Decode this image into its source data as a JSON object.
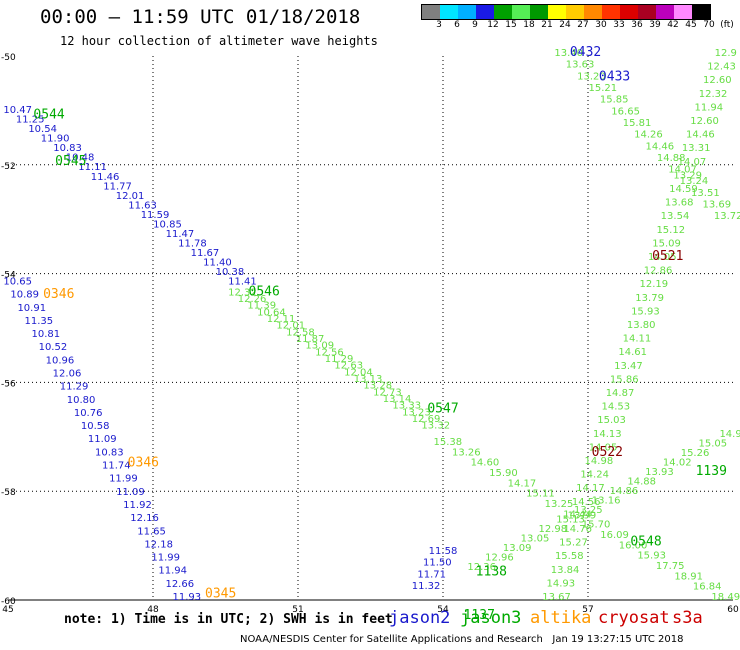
{
  "header": {
    "title": "00:00 – 11:59 UTC 01/18/2018",
    "subtitle": "12 hour collection of altimeter wave heights"
  },
  "scale": {
    "labels": [
      "3",
      "6",
      "9",
      "12",
      "15",
      "18",
      "21",
      "24",
      "27",
      "30",
      "33",
      "36",
      "39",
      "42",
      "45",
      "70",
      "(ft)"
    ],
    "colors": [
      "#808080",
      "#00e5ff",
      "#00b0ff",
      "#1a1ae6",
      "#00a000",
      "#55ee55",
      "#009900",
      "#ffff00",
      "#ffcc00",
      "#ff8800",
      "#ff3300",
      "#dd0000",
      "#aa0022",
      "#bb00bb",
      "#ff88ff",
      "#000000"
    ]
  },
  "map": {
    "lon_ticks": [
      "45",
      "48",
      "51",
      "54",
      "57",
      "60"
    ],
    "lat_ticks": [
      "-50",
      "-52",
      "-54",
      "-56",
      "-58",
      "-60"
    ],
    "lon_range": [
      45,
      60
    ],
    "lat_range": [
      -50,
      -60
    ],
    "grid": "dotted"
  },
  "colors": {
    "jason2": "#1a1acc",
    "jason3": "#00aa00",
    "jason3_light": "#66dd44",
    "altika": "#ff9900",
    "cryosat": "#cc0000",
    "cryosat_dark": "#880000",
    "s3a": "#cc0000"
  },
  "time_labels": [
    {
      "text": "0432",
      "sat": "jason2",
      "lon": 56.95,
      "lat": -50.0
    },
    {
      "text": "0433",
      "sat": "jason2",
      "lon": 57.55,
      "lat": -50.45
    },
    {
      "text": "0544",
      "sat": "jason3",
      "lon": 45.85,
      "lat": -51.15
    },
    {
      "text": "0545",
      "sat": "jason3",
      "lon": 46.3,
      "lat": -52.0
    },
    {
      "text": "0346",
      "sat": "altika",
      "lon": 46.05,
      "lat": -54.45
    },
    {
      "text": "0546",
      "sat": "jason3",
      "lon": 50.3,
      "lat": -54.4
    },
    {
      "text": "0521",
      "sat": "cryosat_dark",
      "lon": 58.65,
      "lat": -53.75
    },
    {
      "text": "0547",
      "sat": "jason3",
      "lon": 54.0,
      "lat": -56.55
    },
    {
      "text": "0346",
      "sat": "altika",
      "lon": 47.8,
      "lat": -57.55
    },
    {
      "text": "0522",
      "sat": "cryosat_dark",
      "lon": 57.4,
      "lat": -57.35
    },
    {
      "text": "1139",
      "sat": "jason3",
      "lon": 59.55,
      "lat": -57.7
    },
    {
      "text": "0548",
      "sat": "jason3",
      "lon": 58.2,
      "lat": -59.0
    },
    {
      "text": "1138",
      "sat": "jason3",
      "lon": 55.0,
      "lat": -59.55
    },
    {
      "text": "1137",
      "sat": "jason3",
      "lon": 54.75,
      "lat": -60.35
    },
    {
      "text": "0345",
      "sat": "altika",
      "lon": 49.4,
      "lat": -59.95
    }
  ],
  "tracks": [
    {
      "sat": "jason2",
      "lon_start": 45.2,
      "lat_start": -51.05,
      "lon_end": 49.85,
      "lat_end": -54.2,
      "values": [
        "10.47",
        "11.25",
        "10.54",
        "11.90",
        "10.83",
        "10.48",
        "11.11",
        "11.46",
        "11.77",
        "12.01",
        "11.63",
        "11.59",
        "10.85",
        "11.47",
        "11.78",
        "11.67",
        "11.40",
        "10.38",
        "11.41"
      ]
    },
    {
      "sat": "jason3_light",
      "lon_start": 49.85,
      "lat_start": -54.4,
      "lon_end": 53.85,
      "lat_end": -56.85,
      "values": [
        "12.32",
        "12.26",
        "11.39",
        "10.64",
        "12.11",
        "12.01",
        "12.58",
        "11.87",
        "13.09",
        "12.56",
        "11.29",
        "12.63",
        "12.04",
        "13.13",
        "13.28",
        "12.73",
        "13.14",
        "13.33",
        "13.23",
        "12.69",
        "13.32"
      ]
    },
    {
      "sat": "jason3_light",
      "lon_start": 54.1,
      "lat_start": -57.15,
      "lon_end": 59.85,
      "lat_end": -60.0,
      "values": [
        "15.38",
        "13.26",
        "14.60",
        "15.90",
        "14.17",
        "15.11",
        "13.25",
        "14.44",
        "15.70",
        "16.09",
        "16.00",
        "15.93",
        "17.75",
        "18.91",
        "16.84",
        "18.49"
      ]
    },
    {
      "sat": "jason2",
      "lon_start": 45.2,
      "lat_start": -54.2,
      "lon_end": 48.7,
      "lat_end": -60.0,
      "values": [
        "10.65",
        "10.89",
        "10.91",
        "11.35",
        "10.81",
        "10.52",
        "10.96",
        "12.06",
        "11.29",
        "10.80",
        "10.76",
        "10.58",
        "11.09",
        "10.83",
        "11.74",
        "11.99",
        "11.09",
        "11.92",
        "12.16",
        "11.65",
        "12.18",
        "11.99",
        "11.94",
        "12.66",
        "11.93"
      ]
    },
    {
      "sat": "jason3_light",
      "lon_start": 56.6,
      "lat_start": -50.0,
      "lon_end": 59.9,
      "lat_end": -53.0,
      "values": [
        "13.40",
        "13.63",
        "13.20",
        "15.21",
        "15.85",
        "16.65",
        "15.81",
        "14.26",
        "14.46",
        "14.88",
        "14.07",
        "13.24",
        "13.51",
        "13.69",
        "13.72"
      ]
    },
    {
      "sat": "jason3_light",
      "lon_start": 59.85,
      "lat_start": -50.0,
      "lon_end": 56.35,
      "lat_end": -60.0,
      "values": [
        "12.9",
        "12.43",
        "12.60",
        "12.32",
        "11.94",
        "12.60",
        "14.46",
        "13.31",
        "14.07",
        "13.29",
        "14.59",
        "13.68",
        "13.54",
        "15.12",
        "15.09",
        "14.05",
        "12.86",
        "12.19",
        "13.79",
        "15.93",
        "13.80",
        "14.11",
        "14.61",
        "13.47",
        "15.86",
        "14.87",
        "14.53",
        "15.03",
        "14.13",
        "14.05",
        "14.98",
        "14.24",
        "14.17",
        "14.56",
        "13.99",
        "14.76",
        "15.27",
        "15.58",
        "13.84",
        "14.93",
        "13.67"
      ]
    },
    {
      "sat": "jason2",
      "lon_start": 54.0,
      "lat_start": -59.15,
      "lon_end": 53.65,
      "lat_end": -59.8,
      "values": [
        "11.58",
        "11.50",
        "11.71",
        "11.32"
      ]
    },
    {
      "sat": "jason3_light",
      "lon_start": 59.95,
      "lat_start": -57.0,
      "lon_end": 54.8,
      "lat_end": -59.45,
      "values": [
        "14.9",
        "15.05",
        "15.26",
        "14.02",
        "13.93",
        "14.88",
        "14.86",
        "13.16",
        "13.25",
        "15.13",
        "12.98",
        "13.05",
        "13.09",
        "12.96",
        "12.36"
      ]
    }
  ],
  "note": "note: 1) Time is in UTC; 2) SWH is in feet",
  "legend": [
    {
      "label": "jason2",
      "sat": "jason2"
    },
    {
      "label": "jason3",
      "sat": "jason3"
    },
    {
      "label": "altika",
      "sat": "altika"
    },
    {
      "label": "cryosat",
      "sat": "cryosat"
    },
    {
      "label": "s3a",
      "sat": "s3a"
    }
  ],
  "footer": "NOAA/NESDIS Center for Satellite Applications and Research   Jan 19 13:27:15 UTC 2018"
}
